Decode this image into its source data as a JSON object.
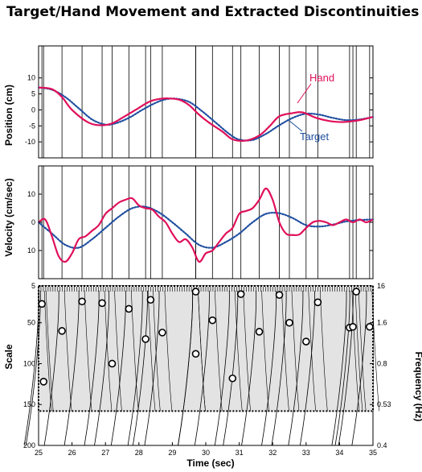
{
  "title": "Target/Hand Movement and Extracted Discontinuities",
  "colors": {
    "hand": "#e0105a",
    "target": "#1f4fa0",
    "scale_fill": "#e3e3e3"
  },
  "chart_data": [
    {
      "type": "line",
      "panel": "position",
      "ylabel": "Position (cm)",
      "yticks": [
        "10",
        "5",
        "0",
        "-5",
        "-10"
      ],
      "ylim": [
        -15,
        20
      ],
      "xlim": [
        25,
        35
      ],
      "annotations": [
        "Hand",
        "Target"
      ],
      "series": [
        {
          "name": "Hand",
          "role": "hand",
          "x": [
            25,
            25.4,
            25.7,
            26.0,
            26.5,
            26.9,
            27.2,
            27.5,
            27.9,
            28.3,
            28.6,
            28.85,
            29.2,
            29.5,
            29.8,
            30.1,
            30.5,
            30.8,
            31.2,
            31.6,
            31.9,
            32.2,
            32.6,
            32.9,
            33.3,
            33.7,
            34.1,
            34.6,
            35
          ],
          "y": [
            7,
            6.5,
            4,
            0,
            -4,
            -4.8,
            -4.2,
            -2.5,
            0,
            2.5,
            3.4,
            3.6,
            3.2,
            1.5,
            -1.5,
            -4,
            -6.8,
            -9.2,
            -9.6,
            -8,
            -5.2,
            -2,
            -1,
            -0.8,
            -2.5,
            -3.5,
            -3.8,
            -3.2,
            -2.2
          ]
        },
        {
          "name": "Target",
          "role": "target",
          "x": [
            25,
            25.4,
            25.8,
            26.2,
            26.6,
            27.0,
            27.3,
            27.7,
            28.1,
            28.5,
            28.8,
            29.1,
            29.5,
            29.9,
            30.3,
            30.7,
            31.0,
            31.4,
            31.8,
            32.2,
            32.6,
            33.0,
            33.4,
            33.8,
            34.2,
            34.6,
            35
          ],
          "y": [
            7,
            6.3,
            4,
            0.5,
            -3,
            -4.6,
            -4.2,
            -2.5,
            0,
            2.2,
            3.3,
            3.5,
            2.5,
            -0.5,
            -4,
            -7.5,
            -9.3,
            -9.4,
            -7.5,
            -4.8,
            -2.5,
            -1.2,
            -1.5,
            -2.5,
            -3.2,
            -3,
            -2.2
          ]
        }
      ]
    },
    {
      "type": "line",
      "panel": "velocity",
      "ylabel": "Velocity (cm/sec)",
      "yticks": [
        "10",
        "0",
        "10"
      ],
      "ylim": [
        -20,
        20
      ],
      "xlim": [
        25,
        35
      ],
      "series": [
        {
          "name": "Hand",
          "role": "hand",
          "x": [
            25,
            25.2,
            25.4,
            25.6,
            25.8,
            26.0,
            26.2,
            26.4,
            26.6,
            26.8,
            27.0,
            27.2,
            27.4,
            27.6,
            27.8,
            28.0,
            28.2,
            28.4,
            28.6,
            28.8,
            29.0,
            29.2,
            29.4,
            29.6,
            29.8,
            30.0,
            30.2,
            30.4,
            30.6,
            30.8,
            31.0,
            31.2,
            31.4,
            31.6,
            31.8,
            32.0,
            32.2,
            32.4,
            32.6,
            32.8,
            33.0,
            33.2,
            33.4,
            33.6,
            33.8,
            34.0,
            34.2,
            34.4,
            34.6,
            34.8,
            35
          ],
          "y": [
            0,
            1,
            -5,
            -12,
            -14,
            -11,
            -6,
            -5,
            -3,
            -1,
            3,
            5,
            7,
            8,
            8.5,
            6,
            5,
            4.5,
            2,
            0,
            -4,
            -7,
            -6,
            -9,
            -14,
            -11,
            -10,
            -7,
            -4,
            -2,
            3,
            4,
            5,
            8,
            12,
            8,
            0,
            -4,
            -4.5,
            -4.3,
            -2,
            0,
            0.5,
            0,
            -1,
            0,
            1,
            0,
            1,
            0,
            1
          ]
        },
        {
          "name": "Target",
          "role": "target",
          "x": [
            25,
            25.4,
            25.8,
            26.2,
            26.6,
            27.0,
            27.4,
            27.8,
            28.2,
            28.6,
            29.0,
            29.4,
            29.8,
            30.2,
            30.6,
            31.0,
            31.4,
            31.8,
            32.2,
            32.6,
            33.0,
            33.4,
            33.8,
            34.2,
            34.6,
            35
          ],
          "y": [
            0,
            -4,
            -8,
            -9,
            -6,
            -2,
            2,
            5,
            5.5,
            3.5,
            0,
            -4,
            -8,
            -9,
            -7,
            -4,
            0,
            3,
            3.2,
            1.5,
            -1,
            -1.5,
            -0.8,
            0.3,
            0.8,
            1
          ]
        }
      ]
    },
    {
      "type": "heatmap",
      "panel": "scale",
      "ylabel": "Scale",
      "y2label": "Frequency (Hz)",
      "xlabel": "Time (sec)",
      "xticks": [
        "25",
        "26",
        "27",
        "28",
        "29",
        "30",
        "31",
        "32",
        "33",
        "34",
        "35"
      ],
      "yticks": [
        "5",
        "50",
        "100",
        "150",
        "200"
      ],
      "y2ticks": [
        "16",
        "1.6",
        "0.8",
        "0.53",
        "0.4"
      ],
      "ylim": [
        5,
        200
      ],
      "band_scale_range": [
        5,
        158
      ],
      "extrema": [
        {
          "t": 25.1,
          "s": 27
        },
        {
          "t": 25.15,
          "s": 122
        },
        {
          "t": 25.7,
          "s": 60
        },
        {
          "t": 26.3,
          "s": 24
        },
        {
          "t": 26.9,
          "s": 26
        },
        {
          "t": 27.2,
          "s": 100
        },
        {
          "t": 27.7,
          "s": 33
        },
        {
          "t": 28.2,
          "s": 70
        },
        {
          "t": 28.35,
          "s": 22
        },
        {
          "t": 28.7,
          "s": 62
        },
        {
          "t": 29.7,
          "s": 12
        },
        {
          "t": 29.7,
          "s": 88
        },
        {
          "t": 30.2,
          "s": 47
        },
        {
          "t": 30.8,
          "s": 118
        },
        {
          "t": 31.05,
          "s": 15
        },
        {
          "t": 31.6,
          "s": 61
        },
        {
          "t": 32.2,
          "s": 16
        },
        {
          "t": 32.5,
          "s": 50
        },
        {
          "t": 33.0,
          "s": 73
        },
        {
          "t": 33.35,
          "s": 25
        },
        {
          "t": 34.3,
          "s": 56
        },
        {
          "t": 34.4,
          "s": 55
        },
        {
          "t": 34.5,
          "s": 12
        },
        {
          "t": 34.9,
          "s": 55
        }
      ]
    }
  ]
}
